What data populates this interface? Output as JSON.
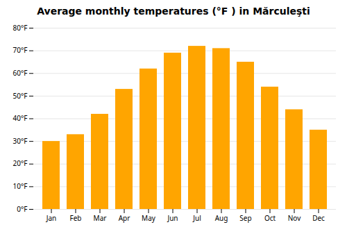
{
  "chart_data": {
    "type": "bar",
    "title": "Average monthly temperatures (°F ) in Mărculeşti",
    "categories": [
      "Jan",
      "Feb",
      "Mar",
      "Apr",
      "May",
      "Jun",
      "Jul",
      "Aug",
      "Sep",
      "Oct",
      "Nov",
      "Dec"
    ],
    "values": [
      30,
      33,
      42,
      53,
      62,
      69,
      72,
      71,
      65,
      54,
      44,
      35
    ],
    "color": "#FFA500",
    "ylim": [
      0,
      80
    ],
    "yticks": [
      {
        "value": 0,
        "label": "0°F"
      },
      {
        "value": 10,
        "label": "10°F"
      },
      {
        "value": 20,
        "label": "20°F"
      },
      {
        "value": 30,
        "label": "30°F"
      },
      {
        "value": 40,
        "label": "40°F"
      },
      {
        "value": 50,
        "label": "50°F"
      },
      {
        "value": 60,
        "label": "60°F"
      },
      {
        "value": 70,
        "label": "70°F"
      },
      {
        "value": 80,
        "label": "80°F"
      }
    ],
    "grid": true
  }
}
